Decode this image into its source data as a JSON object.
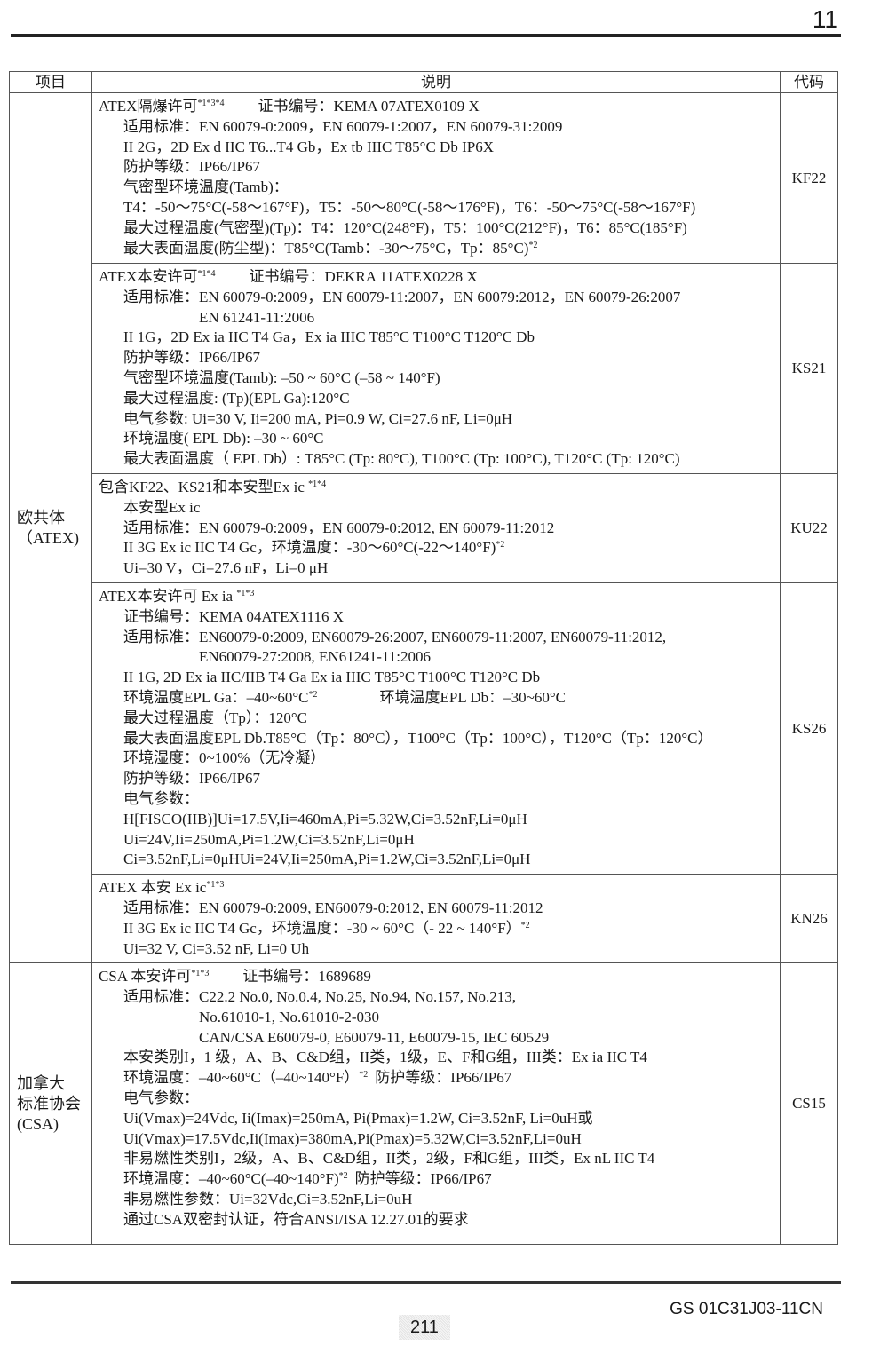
{
  "page_header": {
    "section_number": "11"
  },
  "table": {
    "headers": [
      "项目",
      "说明",
      "代码"
    ],
    "groups": [
      {
        "category": [
          "欧共体",
          "（ATEX)"
        ],
        "rows": [
          {
            "code": "KF22",
            "heading": {
              "text": "ATEX隔爆许可",
              "sup": "*1*3*4",
              "tail": "证书编号：KEMA 07ATEX0109 X"
            },
            "items": [
              {
                "label": "适用标准：",
                "values": [
                  "EN 60079-0:2009，EN 60079-1:2007，EN 60079-31:2009"
                ]
              },
              {
                "text": "II 2G，2D Ex d IIC T6...T4 Gb，Ex tb IIIC T85°C Db IP6X"
              },
              {
                "text": "防护等级：IP66/IP67"
              },
              {
                "text": "气密型环境温度(Tamb)："
              },
              {
                "text": "T4：-50～75°C(-58～167°F)，T5：-50～80°C(-58～176°F)，T6：-50～75°C(-58～167°F)"
              },
              {
                "text": "最大过程温度(气密型)(Tp)：T4：120°C(248°F)，T5：100°C(212°F)，T6：85°C(185°F)"
              },
              {
                "text": "最大表面温度(防尘型)：T85°C(Tamb：-30～75°C，Tp：85°C)",
                "sup": "*2"
              }
            ]
          },
          {
            "code": "KS21",
            "heading": {
              "text": "ATEX本安许可",
              "sup": "*1*4",
              "tail": "证书编号：DEKRA 11ATEX0228 X"
            },
            "items": [
              {
                "label": "适用标准：",
                "values": [
                  "EN 60079-0:2009，EN 60079-11:2007，EN 60079:2012，EN 60079-26:2007",
                  "EN 61241-11:2006"
                ]
              },
              {
                "text": "II 1G，2D Ex ia IIC T4 Ga，Ex ia IIIC T85°C T100°C T120°C Db"
              },
              {
                "text": "防护等级：IP66/IP67"
              },
              {
                "text": "气密型环境温度(Tamb): –50 ~ 60°C (–58 ~ 140°F)"
              },
              {
                "text": "最大过程温度: (Tp)(EPL Ga):120°C"
              },
              {
                "text": "电气参数: Ui=30 V, Ii=200 mA, Pi=0.9 W, Ci=27.6 nF, Li=0μH"
              },
              {
                "text": "环境温度( EPL Db): –30 ~ 60°C"
              },
              {
                "text": "最大表面温度（ EPL Db）: T85°C (Tp: 80°C), T100°C (Tp: 100°C), T120°C (Tp: 120°C)"
              }
            ]
          },
          {
            "code": "KU22",
            "heading": {
              "text": "包含KF22、KS21和本安型Ex ic ",
              "sup": "*1*4"
            },
            "items": [
              {
                "text": "本安型Ex ic"
              },
              {
                "label": "适用标准：",
                "values": [
                  "EN 60079-0:2009，EN 60079-0:2012, EN 60079-11:2012"
                ]
              },
              {
                "text": "II 3G Ex ic IIC T4 Gc，环境温度：-30～60°C(-22～140°F)",
                "sup": "*2"
              },
              {
                "text": "Ui=30 V，Ci=27.6 nF，Li=0 μH"
              }
            ]
          },
          {
            "code": "KS26",
            "heading": {
              "text": "ATEX本安许可 Ex ia ",
              "sup": "*1*3"
            },
            "items": [
              {
                "text": "证书编号：KEMA 04ATEX1116 X"
              },
              {
                "label": "适用标准：",
                "values": [
                  "EN60079-0:2009, EN60079-26:2007, EN60079-11:2007, EN60079-11:2012,",
                  "EN60079-27:2008, EN61241-11:2006"
                ]
              },
              {
                "text": "II 1G, 2D Ex ia IIC/IIB T4 Ga Ex ia IIIC T85°C T100°C T120°C Db"
              },
              {
                "text": "环境温度EPL Ga：–40~60°C",
                "sup": "*2",
                "after": "环境温度EPL Db：–30~60°C"
              },
              {
                "text": "最大过程温度（Tp）：120°C"
              },
              {
                "text": "最大表面温度EPL Db.T85°C（Tp：80°C），T100°C（Tp：100°C），T120°C（Tp：120°C）"
              },
              {
                "text": "环境湿度：0~100%（无冷凝）"
              },
              {
                "text": "防护等级：IP66/IP67"
              },
              {
                "text": "电气参数："
              },
              {
                "text": "H[FISCO(IIB)]Ui=17.5V,Ii=460mA,Pi=5.32W,Ci=3.52nF,Li=0μH"
              },
              {
                "text": "Ui=24V,Ii=250mA,Pi=1.2W,Ci=3.52nF,Li=0μH"
              },
              {
                "text": "Ci=3.52nF,Li=0μHUi=24V,Ii=250mA,Pi=1.2W,Ci=3.52nF,Li=0μH"
              }
            ]
          },
          {
            "code": "KN26",
            "heading": {
              "text": "ATEX 本安 Ex ic",
              "sup": "*1*3"
            },
            "items": [
              {
                "label": "适用标准：",
                "values": [
                  "EN 60079-0:2009, EN60079-0:2012, EN 60079-11:2012"
                ]
              },
              {
                "text": "II 3G Ex ic IIC T4 Gc，环境温度：-30 ~ 60°C（- 22 ~ 140°F）",
                "sup": "*2"
              },
              {
                "text": "Ui=32 V, Ci=3.52 nF, Li=0 Uh"
              }
            ]
          }
        ]
      },
      {
        "category": [
          "加拿大",
          "标准协会",
          "(CSA)"
        ],
        "rows": [
          {
            "code": "CS15",
            "heading": {
              "text": "CSA 本安许可",
              "sup": "*1*3",
              "tail": "证书编号：1689689"
            },
            "items": [
              {
                "label": "适用标准：",
                "values": [
                  "C22.2 No.0,  No.0.4,  No.25,  No.94,  No.157, No.213,",
                  "No.61010-1,  No.61010-2-030",
                  "CAN/CSA E60079-0,  E60079-11,  E60079-15, IEC 60529"
                ]
              },
              {
                "text": "本安类别I，1 级，A、B、C&D组，II类，1级，E、F和G组，III类：Ex ia IIC T4"
              },
              {
                "text": "环境温度：–40~60°C（–40~140°F）",
                "sup": "*2",
                "after": "防护等级：IP66/IP67"
              },
              {
                "text": "电气参数："
              },
              {
                "text": "Ui(Vmax)=24Vdc, Ii(Imax)=250mA, Pi(Pmax)=1.2W, Ci=3.52nF, Li=0uH或"
              },
              {
                "text": "Ui(Vmax)=17.5Vdc,Ii(Imax)=380mA,Pi(Pmax)=5.32W,Ci=3.52nF,Li=0uH"
              },
              {
                "text": "非易燃性类别I，2级，A、B、C&D组，II类，2级，F和G组，III类，Ex nL IIC T4"
              },
              {
                "text": "环境温度：–40~60°C(–40~140°F)",
                "sup": "*2",
                "after": "防护等级：IP66/IP67"
              },
              {
                "text": "非易燃性参数：Ui=32Vdc,Ci=3.52nF,Li=0uH"
              },
              {
                "text": "通过CSA双密封认证，符合ANSI/ISA 12.27.01的要求"
              }
            ]
          }
        ]
      }
    ]
  },
  "footer": {
    "doc_number": "GS 01C31J03-11CN",
    "page_number": "211"
  }
}
